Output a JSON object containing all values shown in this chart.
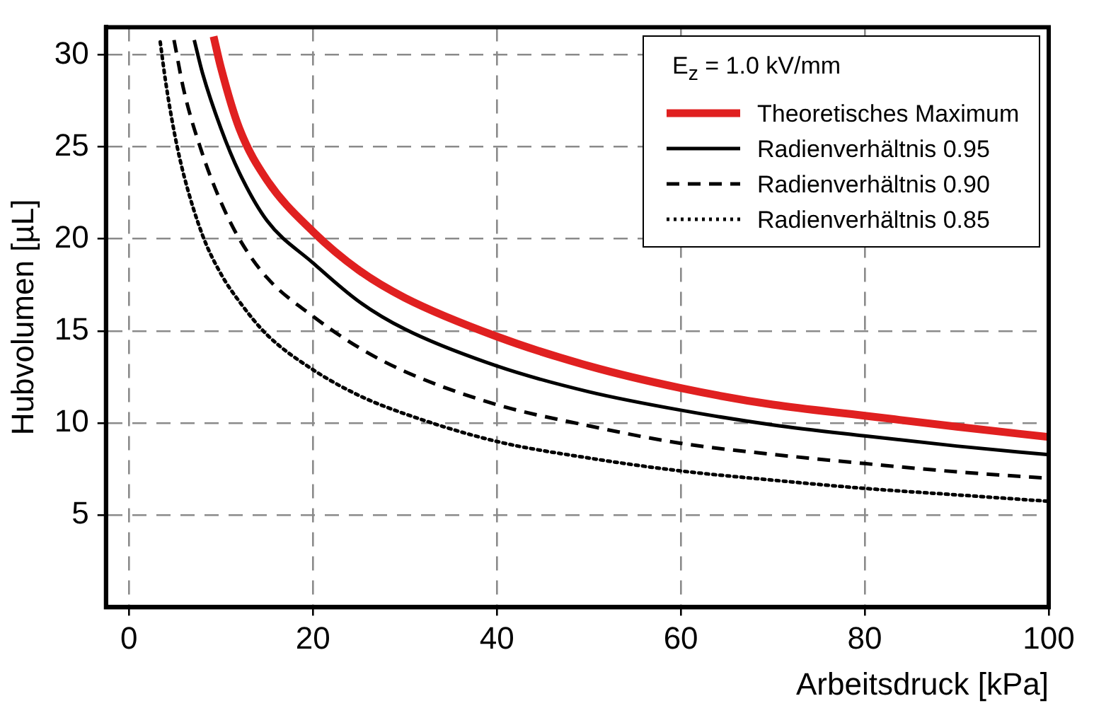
{
  "chart_data": {
    "type": "line",
    "xlabel": "Arbeitsdruck [kPa]",
    "ylabel": "Hubvolumen [µL]",
    "legend_title": "E$_{z}$ = 1.0 kV/mm",
    "legend": "top right",
    "grid": true,
    "marker": "none",
    "xlim": [
      -2.5,
      100
    ],
    "xticks": [
      0,
      20,
      40,
      60,
      80,
      100
    ],
    "ylim": [
      0,
      31.5
    ],
    "yticks": [
      5,
      10,
      15,
      20,
      25,
      30
    ],
    "series": [
      {
        "name": "Theoretisches Maximum",
        "color": "#e02020",
        "line_style": "solid",
        "x": [
          9.2,
          10,
          12,
          15,
          20,
          25,
          30,
          40,
          50,
          60,
          70,
          80,
          90,
          100
        ],
        "values": [
          31.0,
          29.3,
          26.0,
          23.2,
          20.4,
          18.3,
          16.8,
          14.7,
          13.1,
          11.9,
          11.0,
          10.4,
          9.8,
          9.24
        ]
      },
      {
        "name": "Radienverhältnis 0.95",
        "color": "#000000",
        "line_style": "solid",
        "x": [
          7.1,
          8,
          10,
          12,
          15,
          20,
          25,
          30,
          40,
          50,
          60,
          70,
          80,
          90,
          100
        ],
        "values": [
          30.8,
          29.0,
          26.0,
          23.6,
          21.0,
          18.7,
          16.6,
          15.1,
          13.1,
          11.7,
          10.7,
          9.9,
          9.3,
          8.75,
          8.28
        ]
      },
      {
        "name": "Radienverhältnis 0.90",
        "color": "#000000",
        "line_style": "dashed",
        "x": [
          4.9,
          6,
          8,
          10,
          12,
          15,
          20,
          25,
          30,
          40,
          50,
          60,
          70,
          80,
          90,
          100
        ],
        "values": [
          30.8,
          28.0,
          24.6,
          22.0,
          20.0,
          17.9,
          15.8,
          14.1,
          12.8,
          11.0,
          9.85,
          8.9,
          8.3,
          7.8,
          7.35,
          7.0
        ]
      },
      {
        "name": "Radienverhältnis 0.85",
        "color": "#000000",
        "line_style": "dotted",
        "x": [
          3.4,
          4,
          5,
          6,
          8,
          10,
          12,
          15,
          20,
          25,
          30,
          40,
          50,
          60,
          70,
          80,
          90,
          100
        ],
        "values": [
          30.7,
          28.5,
          25.6,
          23.4,
          20.2,
          18.1,
          16.6,
          14.8,
          12.9,
          11.5,
          10.5,
          9.0,
          8.1,
          7.4,
          6.9,
          6.45,
          6.1,
          5.75
        ]
      }
    ]
  }
}
